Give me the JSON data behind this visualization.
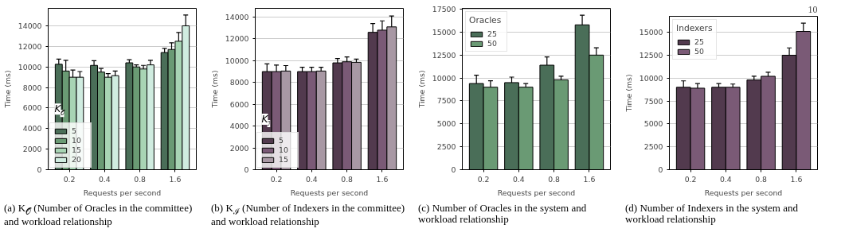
{
  "chart_data": [
    {
      "type": "bar",
      "categories": [
        "0.2",
        "0.4",
        "0.8",
        "1.6"
      ],
      "xlabel": "Requests per second",
      "ylabel": "Time (ms)",
      "legend_title": "K$_{𝒪}$",
      "legend": "bottom left",
      "grid": "y",
      "ylim": [
        0,
        15700
      ],
      "yticks": [
        0,
        2000,
        4000,
        6000,
        8000,
        10000,
        12000,
        14000
      ],
      "series": [
        {
          "name": "5",
          "color": "#4a6e58",
          "values": [
            10260,
            10150,
            10400,
            11400
          ],
          "errors": [
            500,
            450,
            300,
            400
          ]
        },
        {
          "name": "10",
          "color": "#6a9a74",
          "values": [
            9600,
            9500,
            10000,
            11700
          ],
          "errors": [
            1050,
            350,
            200,
            650
          ]
        },
        {
          "name": "15",
          "color": "#a8d4b4",
          "values": [
            9000,
            9000,
            9800,
            12500
          ],
          "errors": [
            700,
            350,
            350,
            850
          ]
        },
        {
          "name": "20",
          "color": "#d0ece0",
          "values": [
            9000,
            9150,
            10200,
            14000
          ],
          "errors": [
            550,
            450,
            450,
            1050
          ]
        }
      ],
      "annotations": [
        "(a) K$_{𝒪}$ (Number of Oracles in the committee) and workload relationship"
      ]
    },
    {
      "type": "bar",
      "categories": [
        "0.2",
        "0.4",
        "0.8",
        "1.6"
      ],
      "xlabel": "Requests per second",
      "ylabel": "Time (ms)",
      "legend_title": "K$_{ℐ}$",
      "legend": "bottom left",
      "grid": "y",
      "ylim": [
        0,
        14800
      ],
      "yticks": [
        0,
        2000,
        4000,
        6000,
        8000,
        10000,
        12000,
        14000
      ],
      "series": [
        {
          "name": "5",
          "color": "#523a4e",
          "values": [
            9000,
            9000,
            9800,
            12600
          ],
          "errors": [
            700,
            400,
            400,
            800
          ]
        },
        {
          "name": "10",
          "color": "#7a5a76",
          "values": [
            9000,
            9000,
            9900,
            12800
          ],
          "errors": [
            600,
            400,
            450,
            850
          ]
        },
        {
          "name": "15",
          "color": "#a898a4",
          "values": [
            9050,
            9050,
            9850,
            13100
          ],
          "errors": [
            500,
            350,
            300,
            1000
          ]
        }
      ],
      "annotations": [
        "(b) K$_{ℐ}$ (Number of Indexers in the committee) and workload relationship"
      ]
    },
    {
      "type": "bar",
      "categories": [
        "0.2",
        "0.4",
        "0.8",
        "1.6"
      ],
      "xlabel": "Requests per second",
      "ylabel": "Time (ms)",
      "legend_title": "Oracles",
      "legend": "top left",
      "grid": "y",
      "ylim": [
        0,
        17600
      ],
      "yticks": [
        0,
        2500,
        5000,
        7500,
        10000,
        12500,
        15000,
        17500
      ],
      "series": [
        {
          "name": "25",
          "color": "#4a6e58",
          "values": [
            9400,
            9500,
            11400,
            15800
          ],
          "errors": [
            900,
            600,
            900,
            1050
          ]
        },
        {
          "name": "50",
          "color": "#6a9a74",
          "values": [
            9000,
            9000,
            9800,
            12500
          ],
          "errors": [
            700,
            400,
            400,
            800
          ]
        }
      ],
      "annotations": [
        "(c) Number of Oracles in the system and workload relationship"
      ]
    },
    {
      "type": "bar",
      "categories": [
        "0.2",
        "0.4",
        "0.8",
        "1.6"
      ],
      "xlabel": "Requests per second",
      "ylabel": "Time (ms)",
      "legend_title": "Indexers",
      "legend": "top left",
      "grid": "y",
      "ylim": [
        0,
        16750
      ],
      "yticks": [
        0,
        2500,
        5000,
        7500,
        10000,
        12500,
        15000
      ],
      "series": [
        {
          "name": "25",
          "color": "#523a4e",
          "values": [
            9000,
            9000,
            9800,
            12500
          ],
          "errors": [
            700,
            400,
            400,
            800
          ]
        },
        {
          "name": "50",
          "color": "#7a5a76",
          "values": [
            8900,
            9000,
            10200,
            15100
          ],
          "errors": [
            500,
            350,
            450,
            900
          ]
        }
      ],
      "annotations": [
        "(d) Number of Indexers in the system and workload relationship",
        "10"
      ]
    }
  ]
}
